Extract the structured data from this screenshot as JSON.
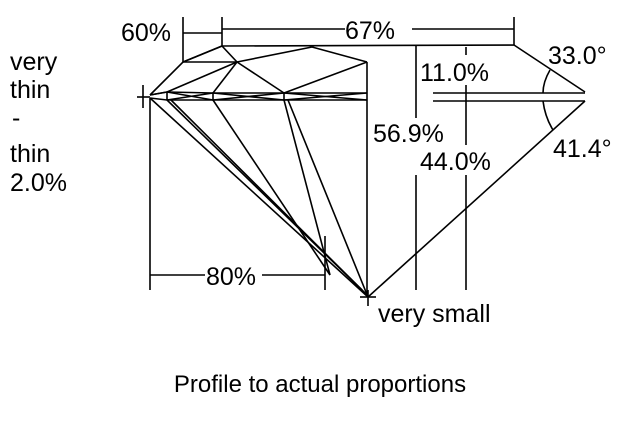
{
  "diagram": {
    "caption": "Profile to actual proportions",
    "table_label": "67%",
    "star_label": "60%",
    "crown_height_label": "11.0%",
    "crown_angle_label": "33.0°",
    "total_depth_label": "56.9%",
    "pavilion_depth_label": "44.0%",
    "pavilion_angle_label": "41.4°",
    "lower_half_label": "80%",
    "culet_label": "very small",
    "girdle_label": [
      "very",
      "thin",
      "-",
      "thin",
      "2.0%"
    ]
  }
}
